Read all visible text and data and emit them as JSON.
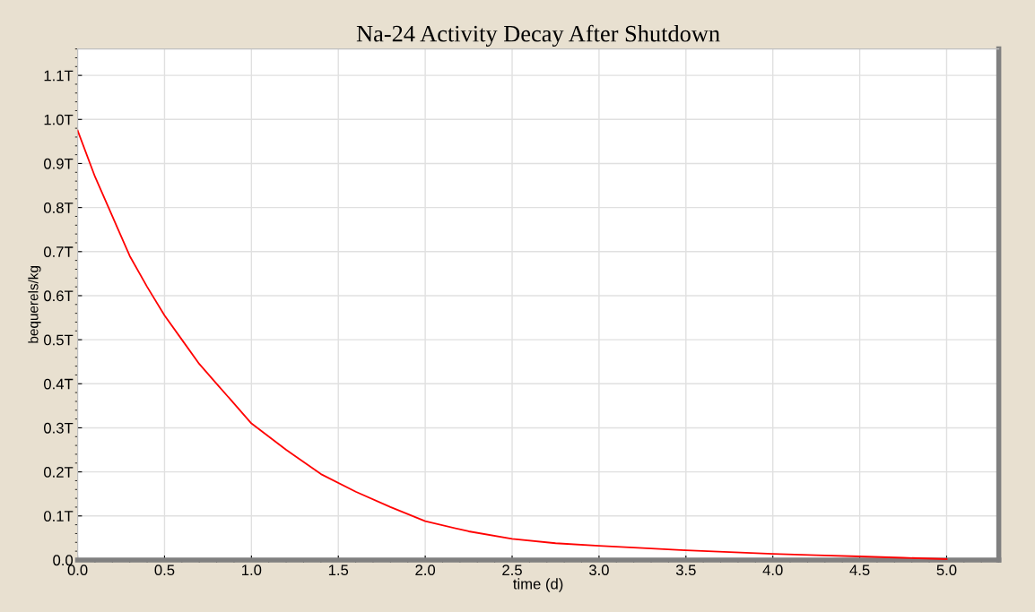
{
  "chart_data": {
    "type": "line",
    "title": "Na-24 Activity Decay After Shutdown",
    "xlabel": "time (d)",
    "ylabel": "bequerels/kg",
    "x": [
      0,
      0.1,
      0.2,
      0.3,
      0.4,
      0.5,
      0.6,
      0.7,
      0.8,
      0.9,
      1.0,
      1.2,
      1.4,
      1.6,
      1.8,
      2.0,
      2.25,
      2.5,
      2.75,
      3.0,
      3.25,
      3.5,
      3.75,
      4.0,
      4.25,
      4.5,
      4.75,
      5.0
    ],
    "series": [
      {
        "color": "#ff0000",
        "values": [
          0.975,
          0.87,
          0.78,
          0.69,
          0.62,
          0.555,
          0.5,
          0.445,
          0.4,
          0.355,
          0.31,
          0.25,
          0.195,
          0.155,
          0.12,
          0.088,
          0.065,
          0.048,
          0.038,
          0.032,
          0.027,
          0.022,
          0.018,
          0.014,
          0.011,
          0.008,
          0.005,
          0.002
        ]
      }
    ],
    "xlim": [
      0,
      5.3
    ],
    "ylim": [
      0,
      1.16
    ],
    "xticks": [
      {
        "value": 0,
        "label": "0.0"
      },
      {
        "value": 0.5,
        "label": "0.5"
      },
      {
        "value": 1,
        "label": "1.0"
      },
      {
        "value": 1.5,
        "label": "1.5"
      },
      {
        "value": 2,
        "label": "2.0"
      },
      {
        "value": 2.5,
        "label": "2.5"
      },
      {
        "value": 3,
        "label": "3.0"
      },
      {
        "value": 3.5,
        "label": "3.5"
      },
      {
        "value": 4,
        "label": "4.0"
      },
      {
        "value": 4.5,
        "label": "4.5"
      },
      {
        "value": 5,
        "label": "5.0"
      }
    ],
    "yticks": [
      {
        "value": 0,
        "label": "0.0"
      },
      {
        "value": 0.1,
        "label": "0.1T"
      },
      {
        "value": 0.2,
        "label": "0.2T"
      },
      {
        "value": 0.3,
        "label": "0.3T"
      },
      {
        "value": 0.4,
        "label": "0.4T"
      },
      {
        "value": 0.5,
        "label": "0.5T"
      },
      {
        "value": 0.6,
        "label": "0.6T"
      },
      {
        "value": 0.7,
        "label": "0.7T"
      },
      {
        "value": 0.8,
        "label": "0.8T"
      },
      {
        "value": 0.9,
        "label": "0.9T"
      },
      {
        "value": 1.0,
        "label": "1.0T"
      },
      {
        "value": 1.1,
        "label": "1.1T"
      }
    ],
    "grid": true,
    "marker": "none",
    "line_style": "solid"
  }
}
